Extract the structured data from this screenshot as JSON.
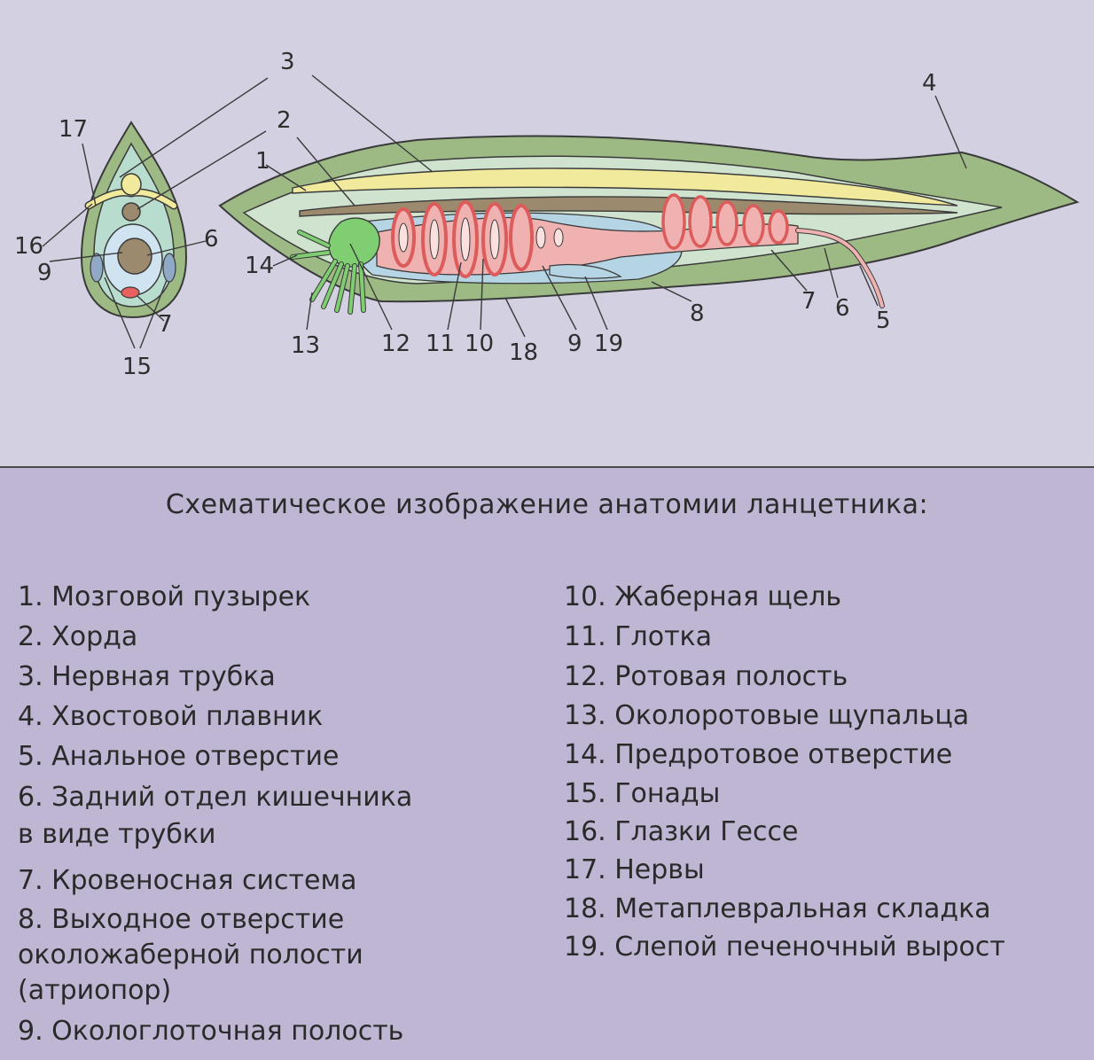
{
  "figure": {
    "cross_section_labels": [
      "17",
      "16",
      "9",
      "6",
      "7",
      "15"
    ],
    "body_labels": [
      "1",
      "2",
      "3",
      "4",
      "5",
      "6",
      "7",
      "8",
      "9",
      "10",
      "11",
      "12",
      "13",
      "14",
      "18",
      "19"
    ]
  },
  "legend": {
    "title": "Схематическое изображение анатомии ланцетника:",
    "left_items": [
      "1. Мозговой пузырек",
      "2. Хорда",
      "3. Нервная трубка",
      "4. Хвостовой плавник",
      "5. Анальное отверстие",
      "6. Задний отдел кишечника",
      "в виде трубки",
      "7. Кровеносная система",
      "8. Выходное отверстие",
      "околожаберной полости",
      "(атриопор)",
      "9. Окологлоточная полость"
    ],
    "right_items": [
      "10. Жаберная щель",
      "11. Глотка",
      "12. Ротовая полость",
      "13. Околоротовые щупальца",
      "14. Предротовое отверстие",
      "15. Гонады",
      "16. Глазки Гессе",
      "17. Нервы",
      "18. Метаплевральная складка",
      "19. Слепой печеночный вырост"
    ]
  },
  "colors": {
    "background_top": "#d3d0e1",
    "background_bottom": "#bfb6d4",
    "body_green": "#9dba85",
    "inner_light": "#cfe3cf",
    "nerve_yellow": "#f1ea9c",
    "chord_brown": "#9c8a6e",
    "gut_pink": "#f0b1b1",
    "blood_red": "#dc5b5b",
    "cavity_blue": "#b5d4e4",
    "tentacle_green": "#7fcf72"
  }
}
